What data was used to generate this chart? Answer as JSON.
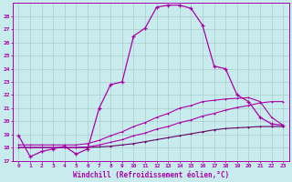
{
  "bg_color": "#c8ecee",
  "grid_color": "#aacccc",
  "line_color": "#aa00aa",
  "line_color2": "#660066",
  "xlabel": "Windchill (Refroidissement éolien,°C)",
  "ylabel_ticks": [
    17,
    18,
    19,
    20,
    21,
    22,
    23,
    24,
    25,
    26,
    27,
    28
  ],
  "xlim": [
    -0.5,
    23.5
  ],
  "ylim": [
    17.0,
    29.0
  ],
  "curve1_x": [
    0,
    1,
    2,
    3,
    4,
    5,
    6,
    7,
    8,
    9,
    10,
    11,
    12,
    13,
    14,
    15,
    16,
    17,
    18,
    19,
    20,
    21,
    22,
    23
  ],
  "curve1_y": [
    18.9,
    17.3,
    17.7,
    17.9,
    18.1,
    17.5,
    17.9,
    21.0,
    22.8,
    23.0,
    26.5,
    27.1,
    28.7,
    28.85,
    28.85,
    28.6,
    27.3,
    24.2,
    24.0,
    22.0,
    21.5,
    20.3,
    19.8,
    19.7
  ],
  "curve2_x": [
    0,
    1,
    2,
    3,
    4,
    5,
    6,
    7,
    8,
    9,
    10,
    11,
    12,
    13,
    14,
    15,
    16,
    17,
    18,
    19,
    20,
    21,
    22,
    23
  ],
  "curve2_y": [
    18.0,
    18.0,
    18.0,
    18.0,
    18.0,
    18.0,
    18.0,
    18.05,
    18.1,
    18.2,
    18.3,
    18.45,
    18.6,
    18.75,
    18.9,
    19.05,
    19.2,
    19.35,
    19.45,
    19.5,
    19.55,
    19.6,
    19.6,
    19.6
  ],
  "curve3_x": [
    0,
    1,
    2,
    3,
    4,
    5,
    6,
    7,
    8,
    9,
    10,
    11,
    12,
    13,
    14,
    15,
    16,
    17,
    18,
    19,
    20,
    21,
    22,
    23
  ],
  "curve3_y": [
    18.0,
    18.0,
    18.0,
    18.0,
    18.0,
    18.0,
    18.05,
    18.2,
    18.4,
    18.6,
    18.9,
    19.1,
    19.4,
    19.6,
    19.9,
    20.1,
    20.4,
    20.6,
    20.85,
    21.05,
    21.2,
    21.4,
    21.5,
    21.5
  ],
  "curve4_x": [
    0,
    1,
    2,
    3,
    4,
    5,
    6,
    7,
    8,
    9,
    10,
    11,
    12,
    13,
    14,
    15,
    16,
    17,
    18,
    19,
    20,
    21,
    22,
    23
  ],
  "curve4_y": [
    18.2,
    18.2,
    18.2,
    18.2,
    18.2,
    18.2,
    18.3,
    18.55,
    18.9,
    19.2,
    19.6,
    19.9,
    20.3,
    20.6,
    21.0,
    21.2,
    21.5,
    21.6,
    21.7,
    21.75,
    21.8,
    21.5,
    20.3,
    19.7
  ]
}
